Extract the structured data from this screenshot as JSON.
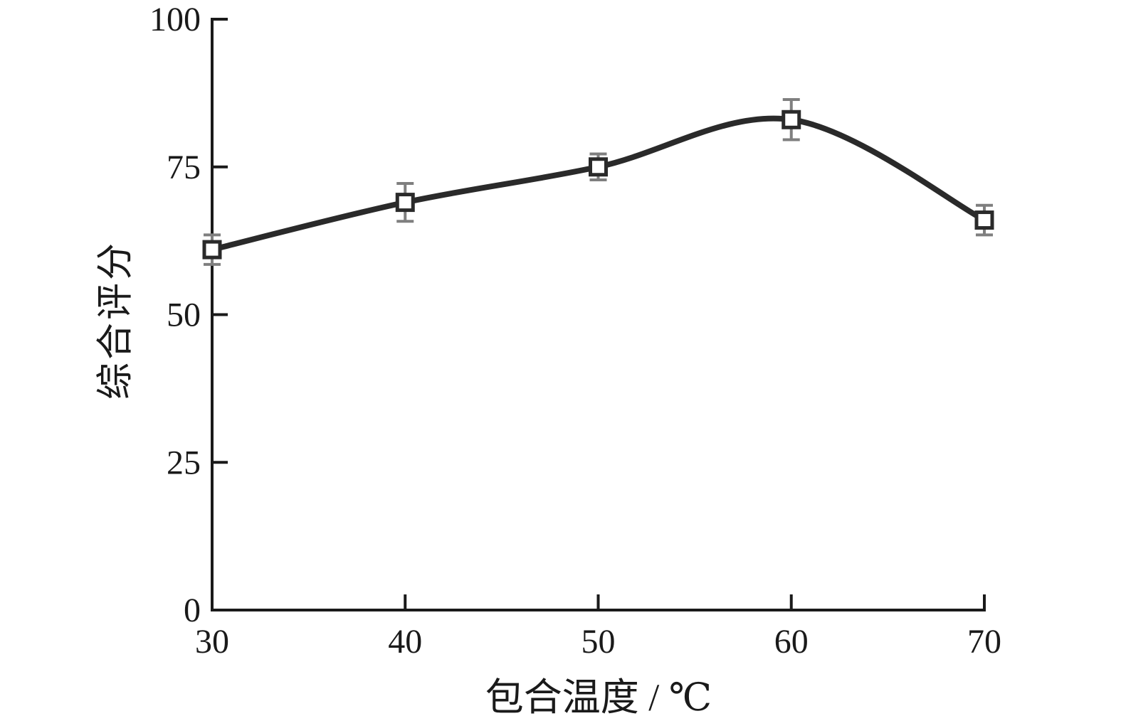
{
  "chart_data": {
    "type": "line",
    "title": "",
    "xlabel": "包合温度 / ℃",
    "ylabel": "综合评分",
    "x": [
      30,
      40,
      50,
      60,
      70
    ],
    "series": [
      {
        "name": "综合评分",
        "values": [
          61,
          69,
          75,
          83,
          66
        ],
        "errors": [
          2.5,
          3.2,
          2.2,
          3.4,
          2.5
        ]
      }
    ],
    "xlim": [
      30,
      70
    ],
    "ylim": [
      0,
      100
    ],
    "x_ticks": [
      30,
      40,
      50,
      60,
      70
    ],
    "y_ticks": [
      0,
      25,
      50,
      75,
      100
    ],
    "grid": false,
    "legend_position": "none",
    "marker": "open-square",
    "colors": {
      "line": "#2a2a2a",
      "marker_fill": "#ffffff",
      "marker_stroke": "#2a2a2a",
      "error_bar": "#7f7f7f",
      "axis": "#1a1a1a",
      "background": "#ffffff"
    }
  }
}
